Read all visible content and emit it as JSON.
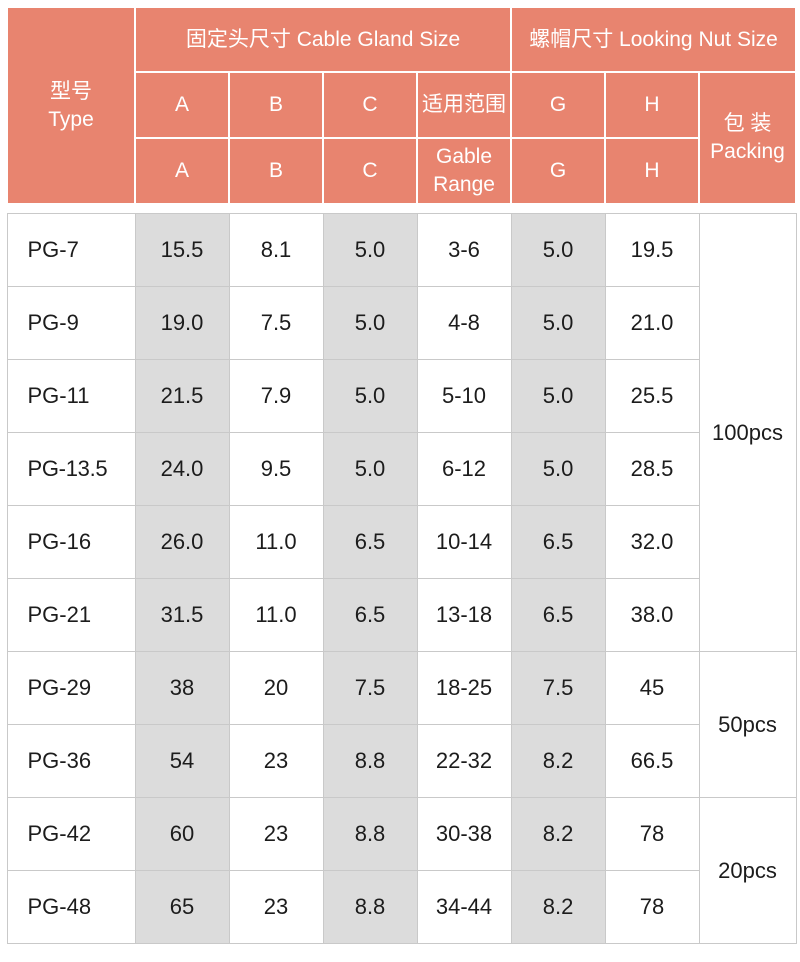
{
  "header": {
    "type_cn": "型号",
    "type_en": "Type",
    "cable_gland_size": "固定头尺寸 Cable Gland  Size",
    "nut_size": "螺帽尺寸 Looking Nut Size",
    "packing_cn": "包 装",
    "packing_en": "Packing",
    "row1": [
      "A",
      "B",
      "C",
      "适用范围",
      "G",
      "H"
    ],
    "row2": [
      "A",
      "B",
      "C",
      "Gable Range",
      "G",
      "H"
    ],
    "row2_range_top": "Gable",
    "row2_range_bottom": "Range"
  },
  "rows": [
    {
      "type": "PG-7",
      "a": "15.5",
      "b": "8.1",
      "c": "5.0",
      "range": "3-6",
      "g": "5.0",
      "h": "19.5"
    },
    {
      "type": "PG-9",
      "a": "19.0",
      "b": "7.5",
      "c": "5.0",
      "range": "4-8",
      "g": "5.0",
      "h": "21.0"
    },
    {
      "type": "PG-11",
      "a": "21.5",
      "b": "7.9",
      "c": "5.0",
      "range": "5-10",
      "g": "5.0",
      "h": "25.5"
    },
    {
      "type": "PG-13.5",
      "a": "24.0",
      "b": "9.5",
      "c": "5.0",
      "range": "6-12",
      "g": "5.0",
      "h": "28.5"
    },
    {
      "type": "PG-16",
      "a": "26.0",
      "b": "11.0",
      "c": "6.5",
      "range": "10-14",
      "g": "6.5",
      "h": "32.0"
    },
    {
      "type": "PG-21",
      "a": "31.5",
      "b": "11.0",
      "c": "6.5",
      "range": "13-18",
      "g": "6.5",
      "h": "38.0"
    },
    {
      "type": "PG-29",
      "a": "38",
      "b": "20",
      "c": "7.5",
      "range": "18-25",
      "g": "7.5",
      "h": "45"
    },
    {
      "type": "PG-36",
      "a": "54",
      "b": "23",
      "c": "8.8",
      "range": "22-32",
      "g": "8.2",
      "h": "66.5"
    },
    {
      "type": "PG-42",
      "a": "60",
      "b": "23",
      "c": "8.8",
      "range": "30-38",
      "g": "8.2",
      "h": "78"
    },
    {
      "type": "PG-48",
      "a": "65",
      "b": "23",
      "c": "8.8",
      "range": "34-44",
      "g": "8.2",
      "h": "78"
    }
  ],
  "packing": [
    "100pcs",
    "50pcs",
    "20pcs"
  ],
  "colors": {
    "header_bg": "#e8846f",
    "shade": "#dcdcdc"
  }
}
